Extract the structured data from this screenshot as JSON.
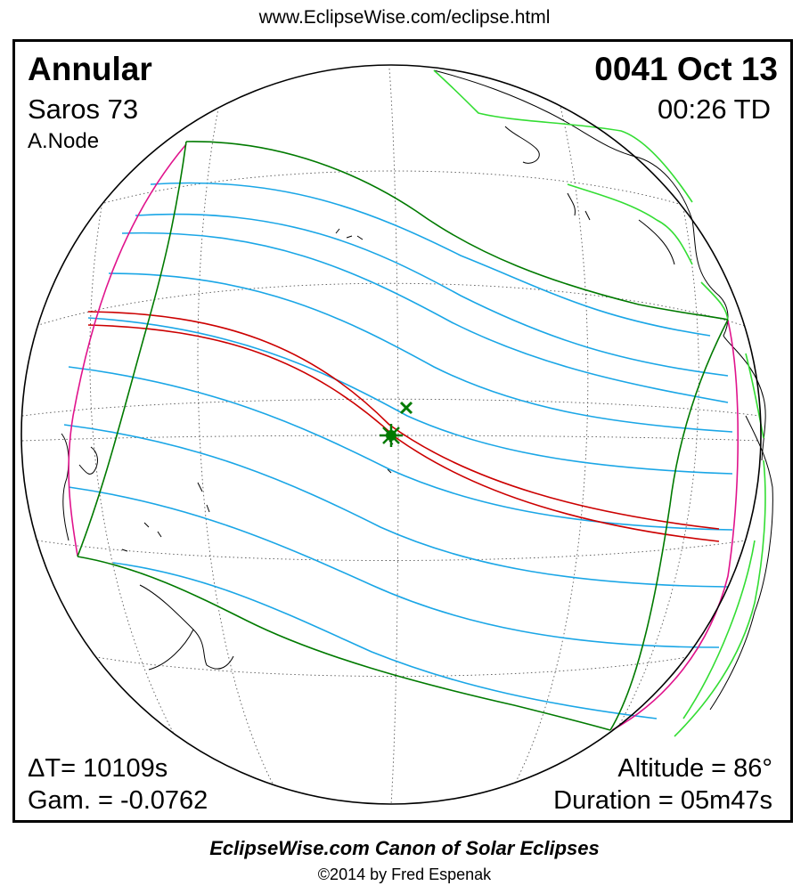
{
  "header": {
    "url": "www.EclipseWise.com/eclipse.html"
  },
  "eclipse": {
    "type": "Annular",
    "date": "0041 Oct 13",
    "saros": "Saros  73",
    "time": "00:26 TD",
    "node": "A.Node",
    "delta_t": "ΔT=  10109s",
    "gamma": "Gam. = -0.0762",
    "altitude": "Altitude = 86°",
    "duration": "Duration = 05m47s"
  },
  "footer": {
    "canon": "EclipseWise.com Canon of Solar Eclipses",
    "copyright": "©2014 by Fred Espenak"
  },
  "colors": {
    "penumbral_limits": "#007a00",
    "partial_lines": "#1aa6e6",
    "central_path": "#cc0000",
    "rise_set_curves": "#e0138c",
    "coastlines": "#000000",
    "boundaries": "#33dd33",
    "greatest_eclipse": "#007a00"
  },
  "legend_icons": {
    "greatest_eclipse": "asterisk-marker-icon",
    "greatest_duration": "x-marker-icon"
  }
}
